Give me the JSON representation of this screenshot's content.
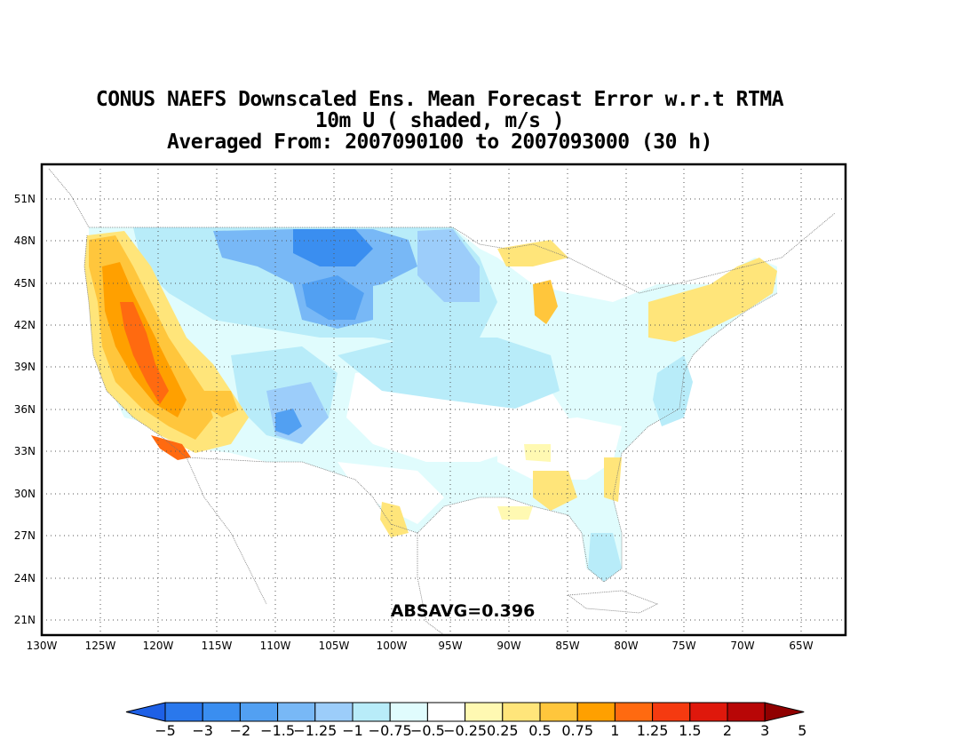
{
  "title": {
    "line1": "CONUS NAEFS Downscaled Ens. Mean Forecast Error w.r.t RTMA",
    "line2": "10m U ( shaded, m/s )",
    "line3": "Averaged From: 2007090100 to 2007093000 (30 h)"
  },
  "map": {
    "lat_labels": [
      "51N",
      "48N",
      "45N",
      "42N",
      "39N",
      "36N",
      "33N",
      "30N",
      "27N",
      "24N",
      "21N"
    ],
    "lon_labels": [
      "130W",
      "125W",
      "120W",
      "115W",
      "110W",
      "105W",
      "100W",
      "95W",
      "90W",
      "85W",
      "80W",
      "75W",
      "70W",
      "65W"
    ],
    "annotation": "ABSAVG=0.396",
    "grid": "dotted"
  },
  "colorbar": {
    "labels": [
      "-5",
      "-3",
      "-2",
      "-1.5",
      "-1.25",
      "-1",
      "-0.75",
      "-0.5",
      "-0.25",
      "0.25",
      "0.5",
      "0.75",
      "1",
      "1.25",
      "1.5",
      "2",
      "3",
      "5"
    ],
    "colors": [
      "#1e60e6",
      "#2a78ec",
      "#3a8ef0",
      "#52a0f2",
      "#78b8f6",
      "#9ccdfa",
      "#b8ecf9",
      "#e0fcfd",
      "#ffffff",
      "#fff9b2",
      "#ffe57a",
      "#ffc63c",
      "#ffa000",
      "#ff6a10",
      "#f53a10",
      "#df180c",
      "#b80606",
      "#900000"
    ]
  }
}
